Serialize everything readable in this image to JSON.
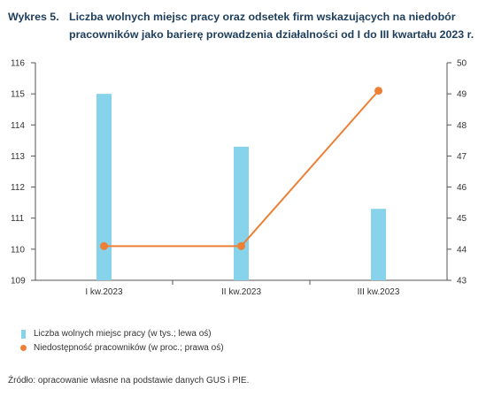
{
  "figure_label": "Wykres 5.",
  "title_line1": "Liczba wolnych miejsc pracy oraz odsetek firm wskazujących na niedobór",
  "title_line2": "pracowników jako barierę prowadzenia działalności od I do III kwartału 2023 r.",
  "source": "Źródło: opracowanie własne na podstawie danych GUS i PIE.",
  "legend": [
    {
      "label": "Liczba wolnych miejsc pracy (w tys.; lewa oś)",
      "marker": "bar"
    },
    {
      "label": "Niedostępność pracowników (w proc.; prawa oś)",
      "marker": "dot"
    }
  ],
  "colors": {
    "bar": "#87d3ec",
    "line": "#ee8035",
    "axis": "#555555",
    "title": "#1d3d5c"
  },
  "chart_data": {
    "type": "bar",
    "categories": [
      "I kw.2023",
      "II kw.2023",
      "III kw.2023"
    ],
    "series": [
      {
        "name": "Liczba wolnych miejsc pracy (w tys.; lewa oś)",
        "type": "bar",
        "axis": "left",
        "values": [
          115.0,
          113.3,
          111.3
        ]
      },
      {
        "name": "Niedostępność pracowników (w proc.; prawa oś)",
        "type": "line",
        "axis": "right",
        "values": [
          44.1,
          44.1,
          49.1
        ]
      }
    ],
    "ylim_left": [
      109,
      116
    ],
    "yticks_left": [
      109,
      110,
      111,
      112,
      113,
      114,
      115,
      116
    ],
    "ylim_right": [
      43,
      50
    ],
    "yticks_right": [
      43,
      44,
      45,
      46,
      47,
      48,
      49,
      50
    ],
    "grid": false
  }
}
